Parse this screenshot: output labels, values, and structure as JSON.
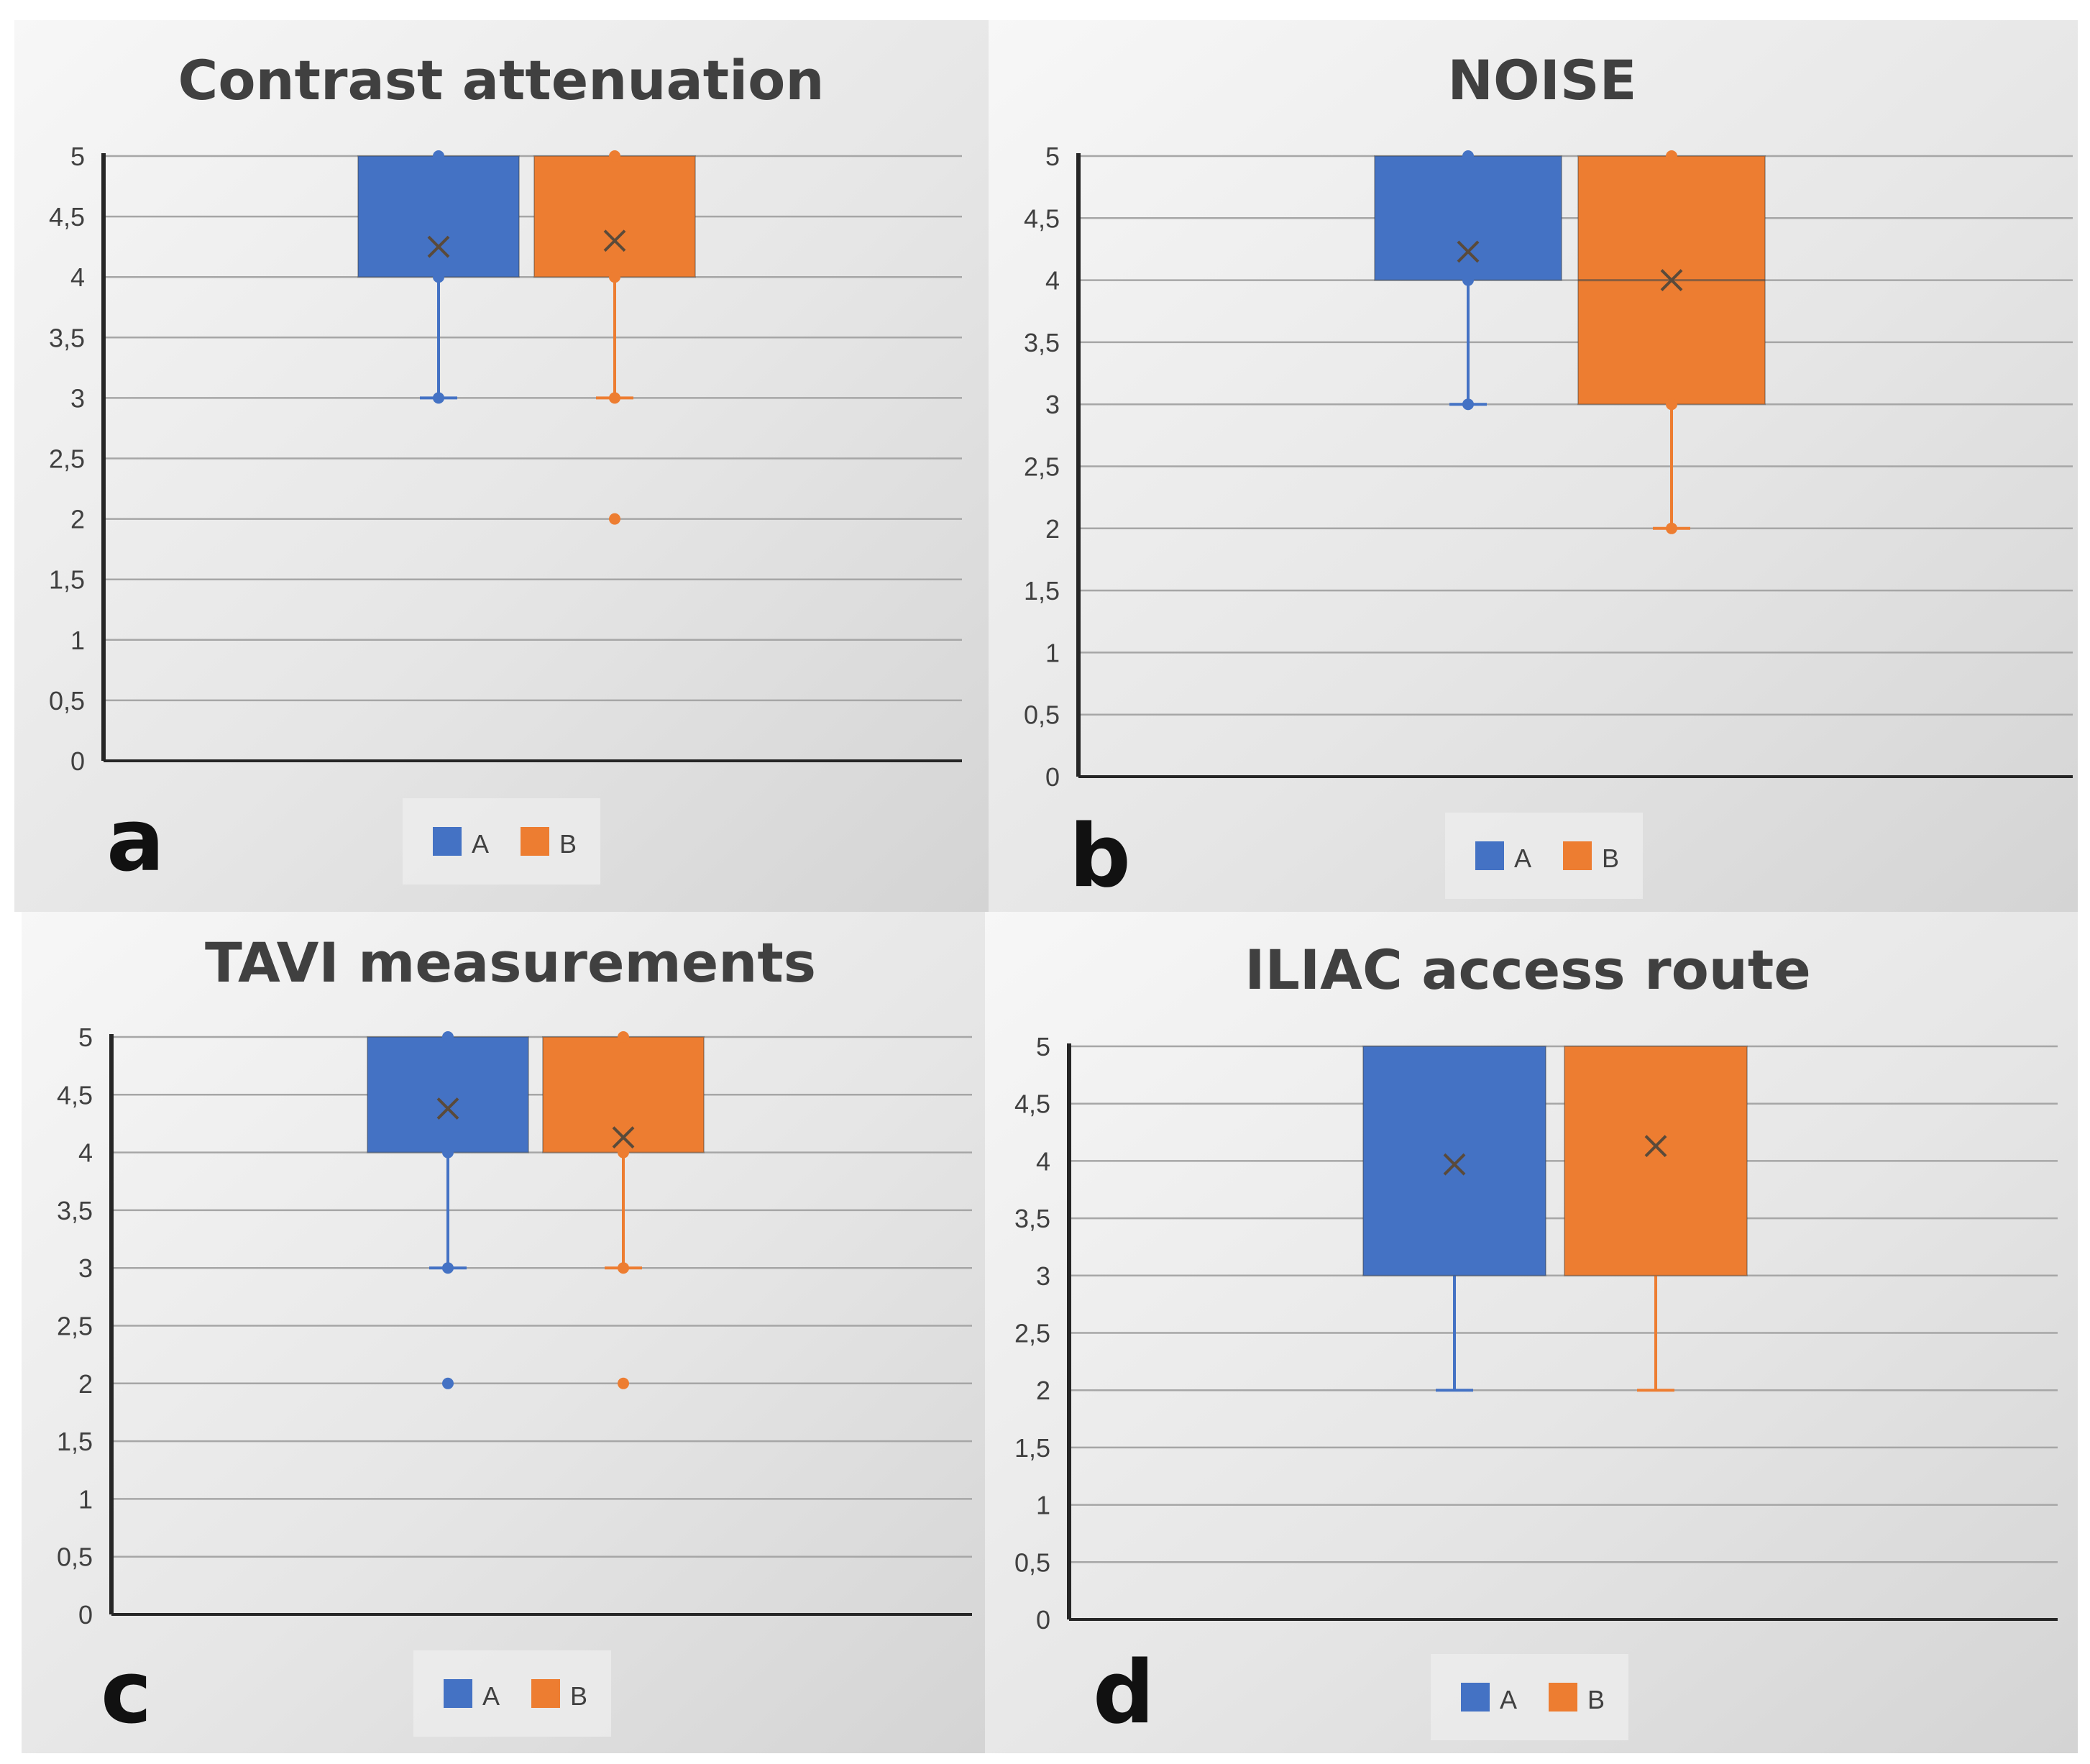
{
  "colors": {
    "A": "#4472C4",
    "B": "#ED7D31",
    "mean_marker": "#5A4A3A",
    "grid": "#A6A6A6",
    "axis": "#262626"
  },
  "chart_data": [
    {
      "type": "box",
      "letter": "a",
      "title": "Contrast attenuation",
      "ylim": [
        0,
        5
      ],
      "y_ticks": [
        "0",
        "0,5",
        "1",
        "1,5",
        "2",
        "2,5",
        "3",
        "3,5",
        "4",
        "4,5",
        "5"
      ],
      "legend": [
        "A",
        "B"
      ],
      "series": [
        {
          "name": "A",
          "min": 3,
          "q1": 4,
          "median": 5,
          "q3": 5,
          "max": 5,
          "mean": 4.25,
          "points": [
            3,
            4,
            5
          ],
          "outliers": []
        },
        {
          "name": "B",
          "min": 3,
          "q1": 4,
          "median": 5,
          "q3": 5,
          "max": 5,
          "mean": 4.3,
          "points": [
            3,
            4,
            5
          ],
          "outliers": [
            2
          ]
        }
      ]
    },
    {
      "type": "box",
      "letter": "b",
      "title": "NOISE",
      "ylim": [
        0,
        5
      ],
      "y_ticks": [
        "0",
        "0,5",
        "1",
        "1,5",
        "2",
        "2,5",
        "3",
        "3,5",
        "4",
        "4,5",
        "5"
      ],
      "legend": [
        "A",
        "B"
      ],
      "series": [
        {
          "name": "A",
          "min": 3,
          "q1": 4,
          "median": 5,
          "q3": 5,
          "max": 5,
          "mean": 4.23,
          "points": [
            3,
            4,
            5
          ],
          "outliers": []
        },
        {
          "name": "B",
          "min": 2,
          "q1": 3,
          "median": 4,
          "q3": 5,
          "max": 5,
          "mean": 4.0,
          "points": [
            2,
            3,
            5
          ],
          "outliers": []
        }
      ]
    },
    {
      "type": "box",
      "letter": "c",
      "title": "TAVI measurements",
      "ylim": [
        0,
        5
      ],
      "y_ticks": [
        "0",
        "0,5",
        "1",
        "1,5",
        "2",
        "2,5",
        "3",
        "3,5",
        "4",
        "4,5",
        "5"
      ],
      "legend": [
        "A",
        "B"
      ],
      "series": [
        {
          "name": "A",
          "min": 3,
          "q1": 4,
          "median": 5,
          "q3": 5,
          "max": 5,
          "mean": 4.38,
          "points": [
            3,
            4,
            5
          ],
          "outliers": [
            2
          ]
        },
        {
          "name": "B",
          "min": 3,
          "q1": 4,
          "median": 5,
          "q3": 5,
          "max": 5,
          "mean": 4.13,
          "points": [
            3,
            4,
            5
          ],
          "outliers": [
            2
          ]
        }
      ]
    },
    {
      "type": "box",
      "letter": "d",
      "title": "ILIAC access route",
      "ylim": [
        0,
        5
      ],
      "y_ticks": [
        "0",
        "0,5",
        "1",
        "1,5",
        "2",
        "2,5",
        "3",
        "3,5",
        "4",
        "4,5",
        "5"
      ],
      "legend": [
        "A",
        "B"
      ],
      "series": [
        {
          "name": "A",
          "min": 2,
          "q1": 3,
          "median": 5,
          "q3": 5,
          "max": 5,
          "mean": 3.97,
          "points": [],
          "outliers": []
        },
        {
          "name": "B",
          "min": 2,
          "q1": 3,
          "median": 5,
          "q3": 5,
          "max": 5,
          "mean": 4.13,
          "points": [],
          "outliers": []
        }
      ]
    }
  ]
}
